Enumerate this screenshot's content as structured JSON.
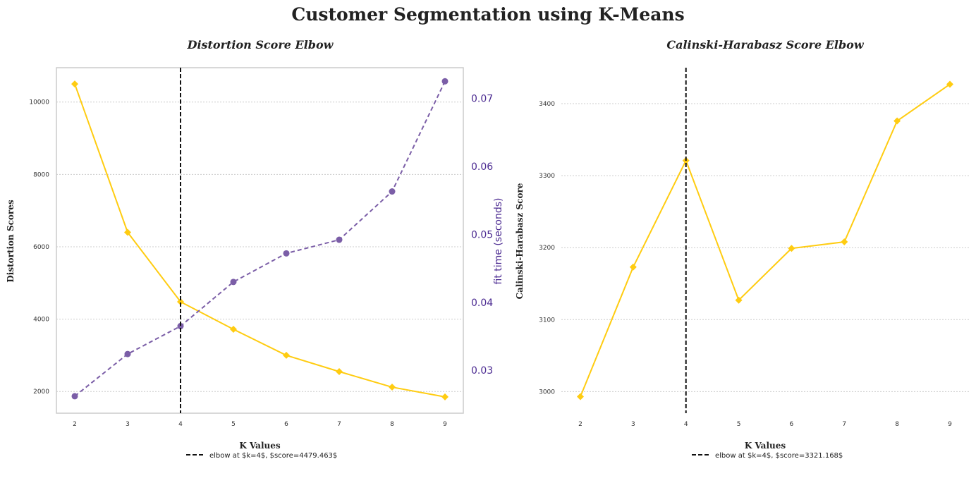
{
  "suptitle": "Customer Segmentation using K-Means",
  "colors": {
    "yellow": "#FFCC11",
    "purple": "#7B5EA7",
    "purple_text": "#4B2A91",
    "elbow": "#111111",
    "grid": "#cccccc",
    "frame": "#cccccc"
  },
  "chart_data": [
    {
      "type": "line",
      "title": "Distortion Score Elbow",
      "xlabel": "K Values",
      "ylabel": "Distortion Scores",
      "y2label": "fit time (seconds)",
      "x": [
        2,
        3,
        4,
        5,
        6,
        7,
        8,
        9
      ],
      "xticks": [
        "2",
        "3",
        "4",
        "5",
        "6",
        "7",
        "8",
        "9"
      ],
      "ylim": [
        1400,
        10950
      ],
      "yticks": [
        2000,
        4000,
        6000,
        8000,
        10000
      ],
      "ytick_labels": [
        "2000",
        "4000",
        "6000",
        "8000",
        "10000"
      ],
      "y2lim": [
        0.0237,
        0.0745
      ],
      "y2ticks": [
        0.03,
        0.04,
        0.05,
        0.06,
        0.07
      ],
      "y2tick_labels": [
        "0.03",
        "0.04",
        "0.05",
        "0.06",
        "0.07"
      ],
      "series": [
        {
          "axis": "left",
          "values": [
            10500,
            6400,
            4480,
            3720,
            3000,
            2550,
            2120,
            1850
          ]
        },
        {
          "axis": "right",
          "values": [
            0.0262,
            0.0324,
            0.0365,
            0.043,
            0.0472,
            0.0492,
            0.0563,
            0.0725
          ]
        }
      ],
      "elbow_k": 4,
      "legend": "elbow at $k=4$, $score=4479.463$",
      "legend_loc": "lower center",
      "grid": "y"
    },
    {
      "type": "line",
      "title": "Calinski-Harabasz Score Elbow",
      "xlabel": "K Values",
      "ylabel": "Calinski-Harabasz Score",
      "x": [
        2,
        3,
        4,
        5,
        6,
        7,
        8,
        9
      ],
      "xticks": [
        "2",
        "3",
        "4",
        "5",
        "6",
        "7",
        "8",
        "9"
      ],
      "ylim": [
        2970,
        3450
      ],
      "yticks": [
        3000,
        3100,
        3200,
        3300,
        3400
      ],
      "ytick_labels": [
        "3000",
        "3100",
        "3200",
        "3300",
        "3400"
      ],
      "series": [
        {
          "axis": "left",
          "values": [
            2993,
            3173,
            3321,
            3127,
            3199,
            3208,
            3376,
            3427
          ]
        }
      ],
      "elbow_k": 4,
      "legend": "elbow at $k=4$, $score=3321.168$",
      "legend_loc": "lower center",
      "grid": "y"
    }
  ]
}
